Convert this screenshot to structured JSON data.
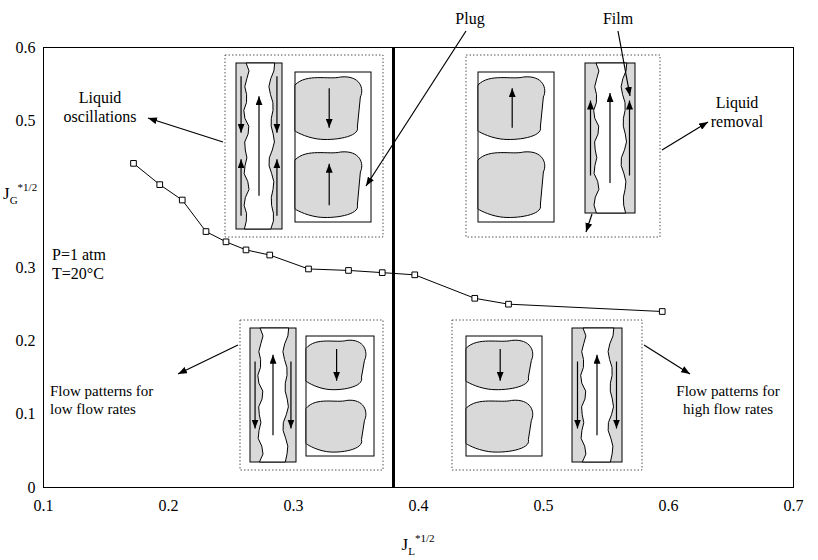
{
  "chart_data": {
    "type": "line",
    "x": [
      0.172,
      0.193,
      0.211,
      0.23,
      0.246,
      0.262,
      0.281,
      0.312,
      0.344,
      0.371,
      0.397,
      0.445,
      0.472,
      0.595
    ],
    "values": [
      0.442,
      0.413,
      0.392,
      0.349,
      0.335,
      0.324,
      0.317,
      0.298,
      0.296,
      0.293,
      0.29,
      0.258,
      0.25,
      0.24
    ],
    "color": "#000000",
    "marker": "square",
    "xlabel": {
      "text": "J",
      "subscript": "L",
      "superscript": "*1/2"
    },
    "ylabel": {
      "text": "J",
      "subscript": "G",
      "superscript": "*1/2"
    },
    "xlim": [
      0.1,
      0.7
    ],
    "ylim": [
      0,
      0.6
    ],
    "xticks": [
      0.1,
      0.2,
      0.3,
      0.4,
      0.5,
      0.6,
      0.7
    ],
    "yticks": [
      0,
      0.1,
      0.2,
      0.3,
      0.5,
      0.6
    ],
    "grid": false,
    "boundary_x": 0.38,
    "annotations": {
      "plug": "Plug",
      "film": "Film",
      "top_left": "Liquid oscillations",
      "top_right": "Liquid removal",
      "bottom_left": "Flow patterns for low flow rates",
      "bottom_right": "Flow patterns for high flow rates",
      "conditions": [
        "P=1 atm",
        "T=20°C"
      ]
    }
  }
}
